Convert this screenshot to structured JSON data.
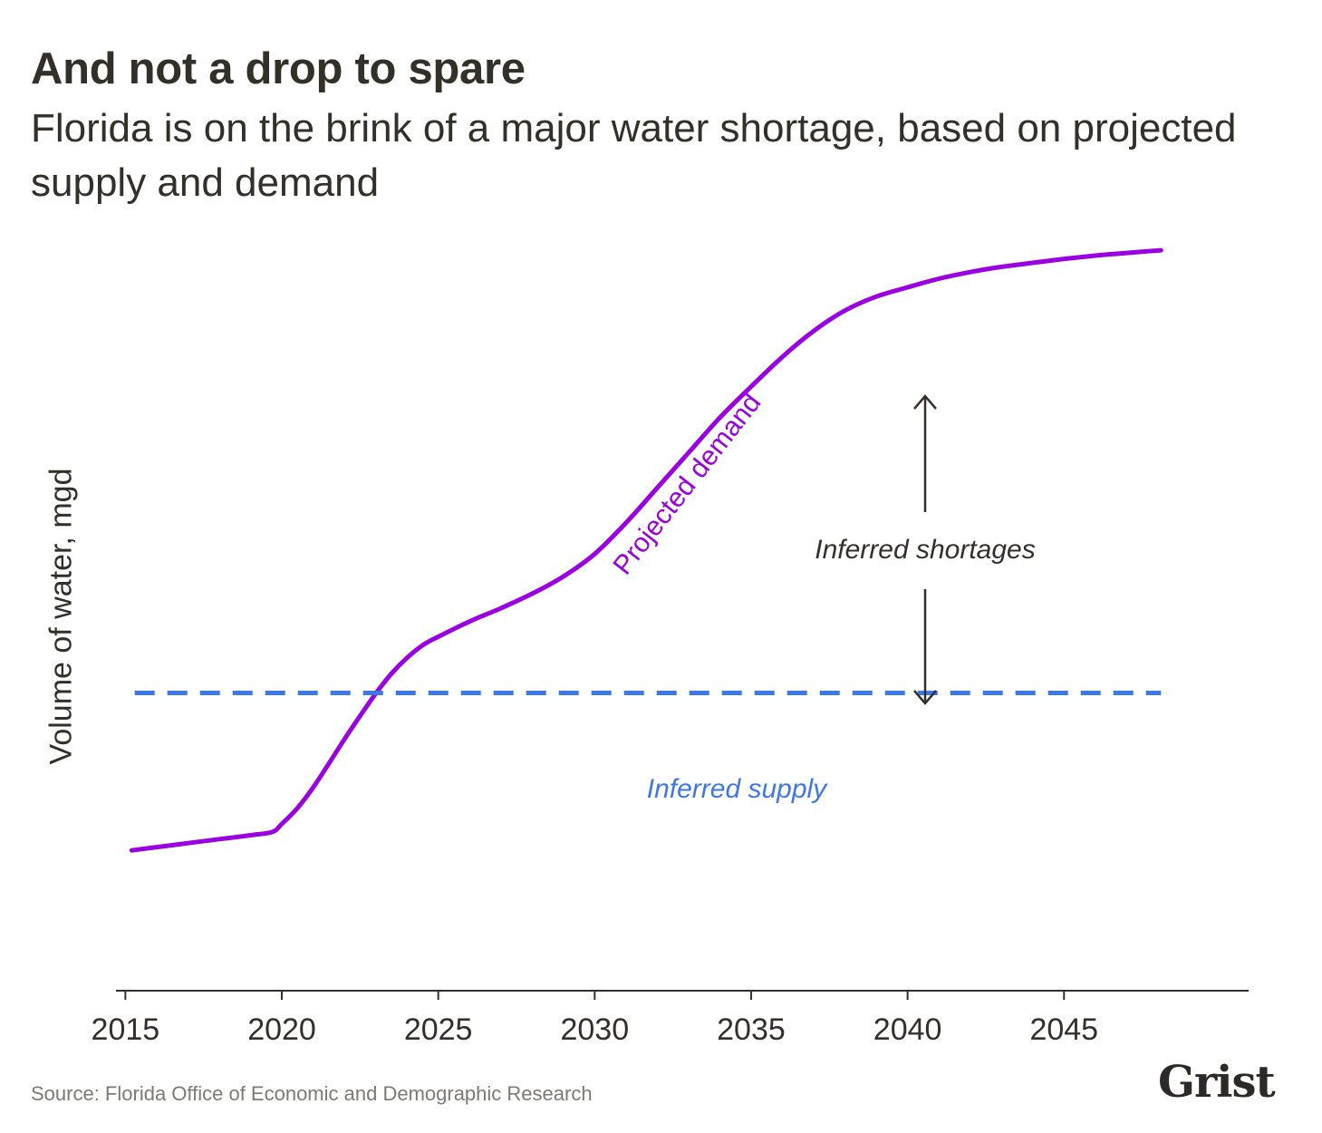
{
  "header": {
    "title": "And not a drop to spare",
    "subtitle": "Florida is on the brink of a major water shortage, based on projected supply and demand"
  },
  "footer": {
    "source": "Source: Florida Office of Economic and Demographic Research",
    "logo_text": "Grist"
  },
  "colors": {
    "demand": "#9b00e0",
    "supply": "#3d78e8",
    "axis": "#33302b",
    "annotation": "#33302b"
  },
  "chart_data": {
    "type": "line",
    "title": "And not a drop to spare",
    "subtitle": "Florida is on the brink of a major water shortage, based on projected supply and demand",
    "xlabel": "",
    "ylabel": "Volume of water, mgd",
    "xlim": [
      2014.7,
      2050.9
    ],
    "ylim": [
      0,
      100
    ],
    "x_ticks": [
      2015,
      2020,
      2025,
      2030,
      2035,
      2040,
      2045
    ],
    "y_ticks_shown": false,
    "grid": false,
    "series": [
      {
        "name": "Projected demand",
        "style": "solid",
        "color": "#9b00e0",
        "x": [
          2015.2,
          2016,
          2017,
          2018,
          2019,
          2019.7,
          2020,
          2020.5,
          2021,
          2021.5,
          2022,
          2022.5,
          2023,
          2023.5,
          2024,
          2024.5,
          2025,
          2026,
          2027,
          2028,
          2029,
          2030,
          2031,
          2032,
          2033,
          2034,
          2035,
          2036,
          2037,
          2038,
          2039,
          2040,
          2041,
          2042,
          2043,
          2044,
          2045,
          2046,
          2047,
          2048.1
        ],
        "y": [
          11.2,
          11.7,
          12.3,
          12.9,
          13.5,
          14.0,
          15.2,
          17.6,
          20.7,
          24.3,
          28.0,
          31.5,
          34.9,
          37.9,
          40.3,
          42.2,
          43.5,
          45.8,
          47.8,
          50.0,
          52.6,
          56.0,
          60.7,
          66.0,
          71.3,
          76.6,
          81.3,
          85.8,
          89.7,
          92.8,
          94.9,
          96.3,
          97.6,
          98.6,
          99.4,
          100.0,
          100.6,
          101.1,
          101.5,
          101.9
        ]
      },
      {
        "name": "Inferred supply",
        "style": "dashed",
        "color": "#3d78e8",
        "x": [
          2015.3,
          2048.1
        ],
        "y": [
          35.0,
          35.0
        ]
      }
    ],
    "annotations": [
      {
        "text": "Projected demand",
        "kind": "series-label"
      },
      {
        "text": "Inferred supply",
        "kind": "series-label"
      },
      {
        "text": "Inferred shortages",
        "kind": "double-arrow"
      }
    ]
  }
}
